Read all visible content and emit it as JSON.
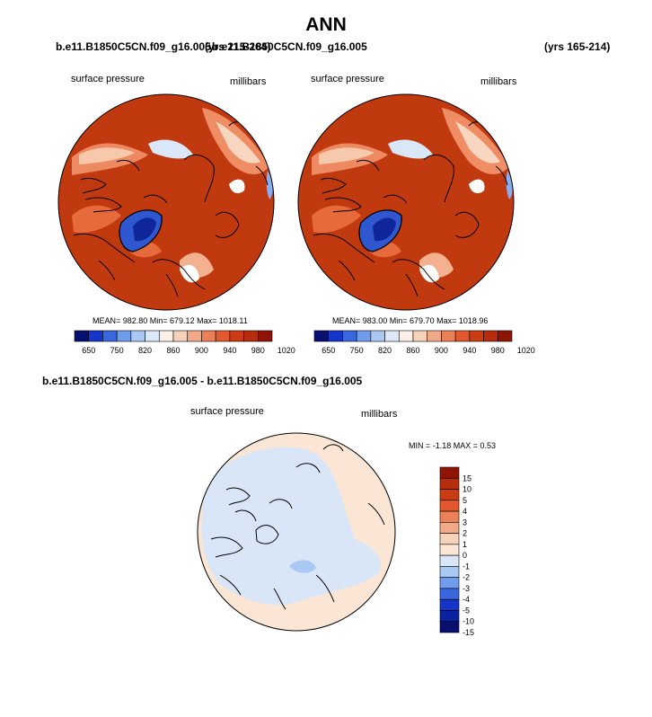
{
  "page": {
    "title": "ANN"
  },
  "panels": [
    {
      "case": "b.e11.B1850C5CN.f09_g16.005",
      "years": "(yrs 215-264)",
      "field": "surface pressure",
      "units": "millibars",
      "stats": "MEAN= 982.80  Min= 679.12  Max= 1018.11",
      "colorbar": {
        "levels": [
          "650",
          "750",
          "820",
          "860",
          "900",
          "940",
          "980",
          "1020"
        ],
        "colors": [
          "#07106e",
          "#1535c8",
          "#3a67dd",
          "#6f9cec",
          "#a9c8f4",
          "#dbe8f8",
          "#fbf0e7",
          "#f6d2bb",
          "#f1aa88",
          "#eb8158",
          "#e2592f",
          "#cb3c14",
          "#b52d0c",
          "#8e1505"
        ]
      }
    },
    {
      "case": "b.e11.B1850C5CN.f09_g16.005",
      "years": "(yrs 165-214)",
      "field": "surface pressure",
      "units": "millibars",
      "stats": "MEAN= 983.00  Min= 679.70  Max= 1018.96",
      "colorbar": {
        "levels": [
          "650",
          "750",
          "820",
          "860",
          "900",
          "940",
          "980",
          "1020"
        ],
        "colors": [
          "#07106e",
          "#1535c8",
          "#3a67dd",
          "#6f9cec",
          "#a9c8f4",
          "#dbe8f8",
          "#fbf0e7",
          "#f6d2bb",
          "#f1aa88",
          "#eb8158",
          "#e2592f",
          "#cb3c14",
          "#b52d0c",
          "#8e1505"
        ]
      }
    }
  ],
  "diff": {
    "title": "b.e11.B1850C5CN.f09_g16.005 - b.e11.B1850C5CN.f09_g16.005",
    "field": "surface pressure",
    "units": "millibars",
    "stats": "MIN =  -1.18 MAX =    0.53",
    "colorbar": {
      "levels": [
        "15",
        "10",
        "5",
        "4",
        "3",
        "2",
        "1",
        "0",
        "-1",
        "-2",
        "-3",
        "-4",
        "-5",
        "-10",
        "-15"
      ],
      "colors": [
        "#8e1505",
        "#b52d0c",
        "#cb3c14",
        "#e2592f",
        "#eb8158",
        "#f1aa88",
        "#f6d2bb",
        "#fbe6d6",
        "#d8e6f8",
        "#a9c8f4",
        "#6f9cec",
        "#3a67dd",
        "#1535c8",
        "#0b22a0",
        "#07106e"
      ]
    }
  },
  "chart_data": [
    {
      "type": "heatmap",
      "title": "b.e11.B1850C5CN.f09_g16.005 (yrs 215-264)",
      "field": "surface pressure",
      "units": "millibars",
      "mean": 982.8,
      "min": 679.12,
      "max": 1018.11,
      "levels": [
        650,
        750,
        820,
        860,
        900,
        940,
        980,
        1020
      ]
    },
    {
      "type": "heatmap",
      "title": "b.e11.B1850C5CN.f09_g16.005 (yrs 165-214)",
      "field": "surface pressure",
      "units": "millibars",
      "mean": 983.0,
      "min": 679.7,
      "max": 1018.96,
      "levels": [
        650,
        750,
        820,
        860,
        900,
        940,
        980,
        1020
      ]
    },
    {
      "type": "heatmap",
      "title": "b.e11.B1850C5CN.f09_g16.005 - b.e11.B1850C5CN.f09_g16.005",
      "field": "surface pressure",
      "units": "millibars",
      "min": -1.18,
      "max": 0.53,
      "levels": [
        15,
        10,
        5,
        4,
        3,
        2,
        1,
        0,
        -1,
        -2,
        -3,
        -4,
        -5,
        -10,
        -15
      ]
    }
  ]
}
